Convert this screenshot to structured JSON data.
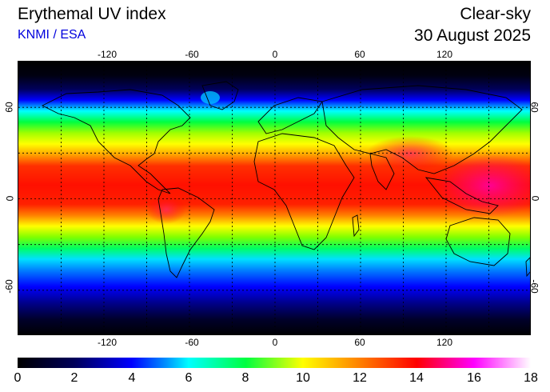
{
  "header": {
    "title": "Erythemal UV index",
    "subtitle": "KNMI / ESA",
    "mode": "Clear-sky",
    "date": "30 August 2025"
  },
  "map": {
    "lon_ticks": [
      "-120",
      "-60",
      "0",
      "60",
      "120"
    ],
    "lat_ticks": [
      "60",
      "0",
      "-60"
    ],
    "lon_range": [
      -180,
      180
    ],
    "lat_range": [
      -90,
      90
    ],
    "gridlines": "dashed every 30 degrees"
  },
  "colorbar": {
    "labels": [
      "0",
      "2",
      "4",
      "6",
      "8",
      "10",
      "12",
      "14",
      "16",
      "18"
    ],
    "range": [
      0,
      18
    ],
    "stops": [
      {
        "v": 0,
        "c": "#000000"
      },
      {
        "v": 2,
        "c": "#00005a"
      },
      {
        "v": 4,
        "c": "#0000ff"
      },
      {
        "v": 5.2,
        "c": "#0090ff"
      },
      {
        "v": 6,
        "c": "#00ffff"
      },
      {
        "v": 8,
        "c": "#00ff40"
      },
      {
        "v": 10,
        "c": "#ffff00"
      },
      {
        "v": 12,
        "c": "#ff8000"
      },
      {
        "v": 14,
        "c": "#ff0000"
      },
      {
        "v": 16,
        "c": "#ff00ff"
      },
      {
        "v": 18,
        "c": "#ffffff"
      }
    ]
  }
}
